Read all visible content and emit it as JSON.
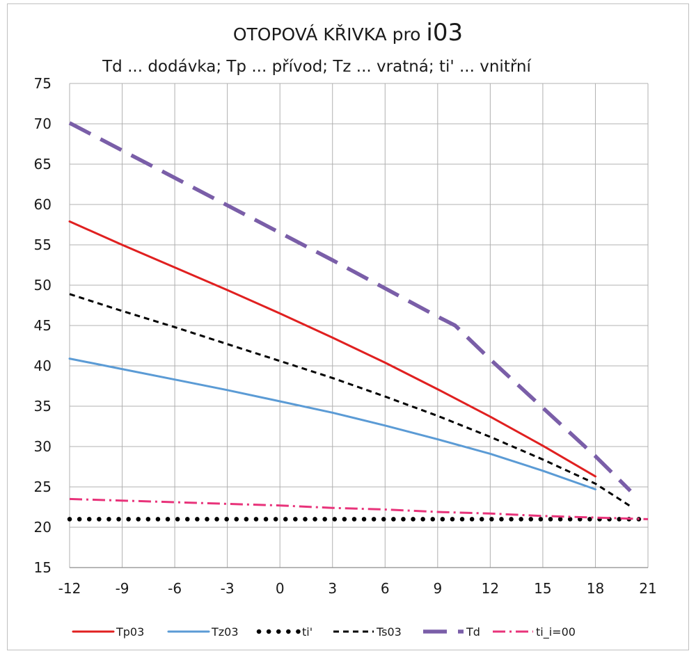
{
  "chart_data": {
    "type": "line",
    "title_prefix": "OTOPOVÁ KŘIVKA pro ",
    "title_emph": "i03",
    "subtitle": "Td ... dodávka; Tp ... přívod; Tz ... vratná; ti' ... vnitřní",
    "xlabel": "",
    "ylabel": "",
    "xlim": [
      -12,
      21
    ],
    "ylim": [
      15,
      75
    ],
    "x_ticks": [
      -12,
      -9,
      -6,
      -3,
      0,
      3,
      6,
      9,
      12,
      15,
      18,
      21
    ],
    "y_ticks": [
      15,
      20,
      25,
      30,
      35,
      40,
      45,
      50,
      55,
      60,
      65,
      70,
      75
    ],
    "grid": true,
    "legend_position": "bottom",
    "series": [
      {
        "name": "Tp03",
        "color": "#e02020",
        "style": "solid",
        "x": [
          -12,
          -9,
          -6,
          -3,
          0,
          3,
          6,
          9,
          12,
          15,
          18
        ],
        "y": [
          57.9,
          55.0,
          52.2,
          49.4,
          46.5,
          43.5,
          40.4,
          37.1,
          33.7,
          30.1,
          26.3
        ]
      },
      {
        "name": "Tz03",
        "color": "#5b9bd5",
        "style": "solid",
        "x": [
          -12,
          -9,
          -6,
          -3,
          0,
          3,
          6,
          9,
          12,
          15,
          18
        ],
        "y": [
          40.9,
          39.6,
          38.3,
          37.0,
          35.6,
          34.2,
          32.6,
          30.9,
          29.1,
          27.0,
          24.7
        ]
      },
      {
        "name": "ti'",
        "color": "#000000",
        "style": "dotted",
        "x": [
          -12,
          -9,
          -6,
          -3,
          0,
          3,
          6,
          9,
          12,
          15,
          18,
          21
        ],
        "y": [
          21,
          21,
          21,
          21,
          21,
          21,
          21,
          21,
          21,
          21,
          21,
          21
        ]
      },
      {
        "name": "Ts03",
        "color": "#000000",
        "style": "dashed",
        "x": [
          -12,
          -9,
          -6,
          -3,
          0,
          3,
          6,
          9,
          12,
          15,
          18,
          20
        ],
        "y": [
          48.9,
          46.8,
          44.8,
          42.7,
          40.6,
          38.5,
          36.2,
          33.8,
          31.2,
          28.4,
          25.4,
          22.6
        ]
      },
      {
        "name": "Td",
        "color": "#7a5ea8",
        "style": "longdash",
        "x": [
          -12,
          -9,
          -6,
          -3,
          0,
          3,
          6,
          9,
          10,
          12,
          15,
          18,
          20
        ],
        "y": [
          70.1,
          66.7,
          63.3,
          59.9,
          56.5,
          53.1,
          49.6,
          46.1,
          45.0,
          40.8,
          34.8,
          28.8,
          24.5
        ]
      },
      {
        "name": "ti_i=00",
        "color": "#e8337a",
        "style": "dashdot",
        "x": [
          -12,
          -9,
          -6,
          -3,
          0,
          3,
          6,
          9,
          12,
          15,
          18,
          21
        ],
        "y": [
          23.5,
          23.3,
          23.1,
          22.9,
          22.7,
          22.4,
          22.2,
          21.9,
          21.7,
          21.4,
          21.2,
          21.0
        ]
      }
    ]
  }
}
